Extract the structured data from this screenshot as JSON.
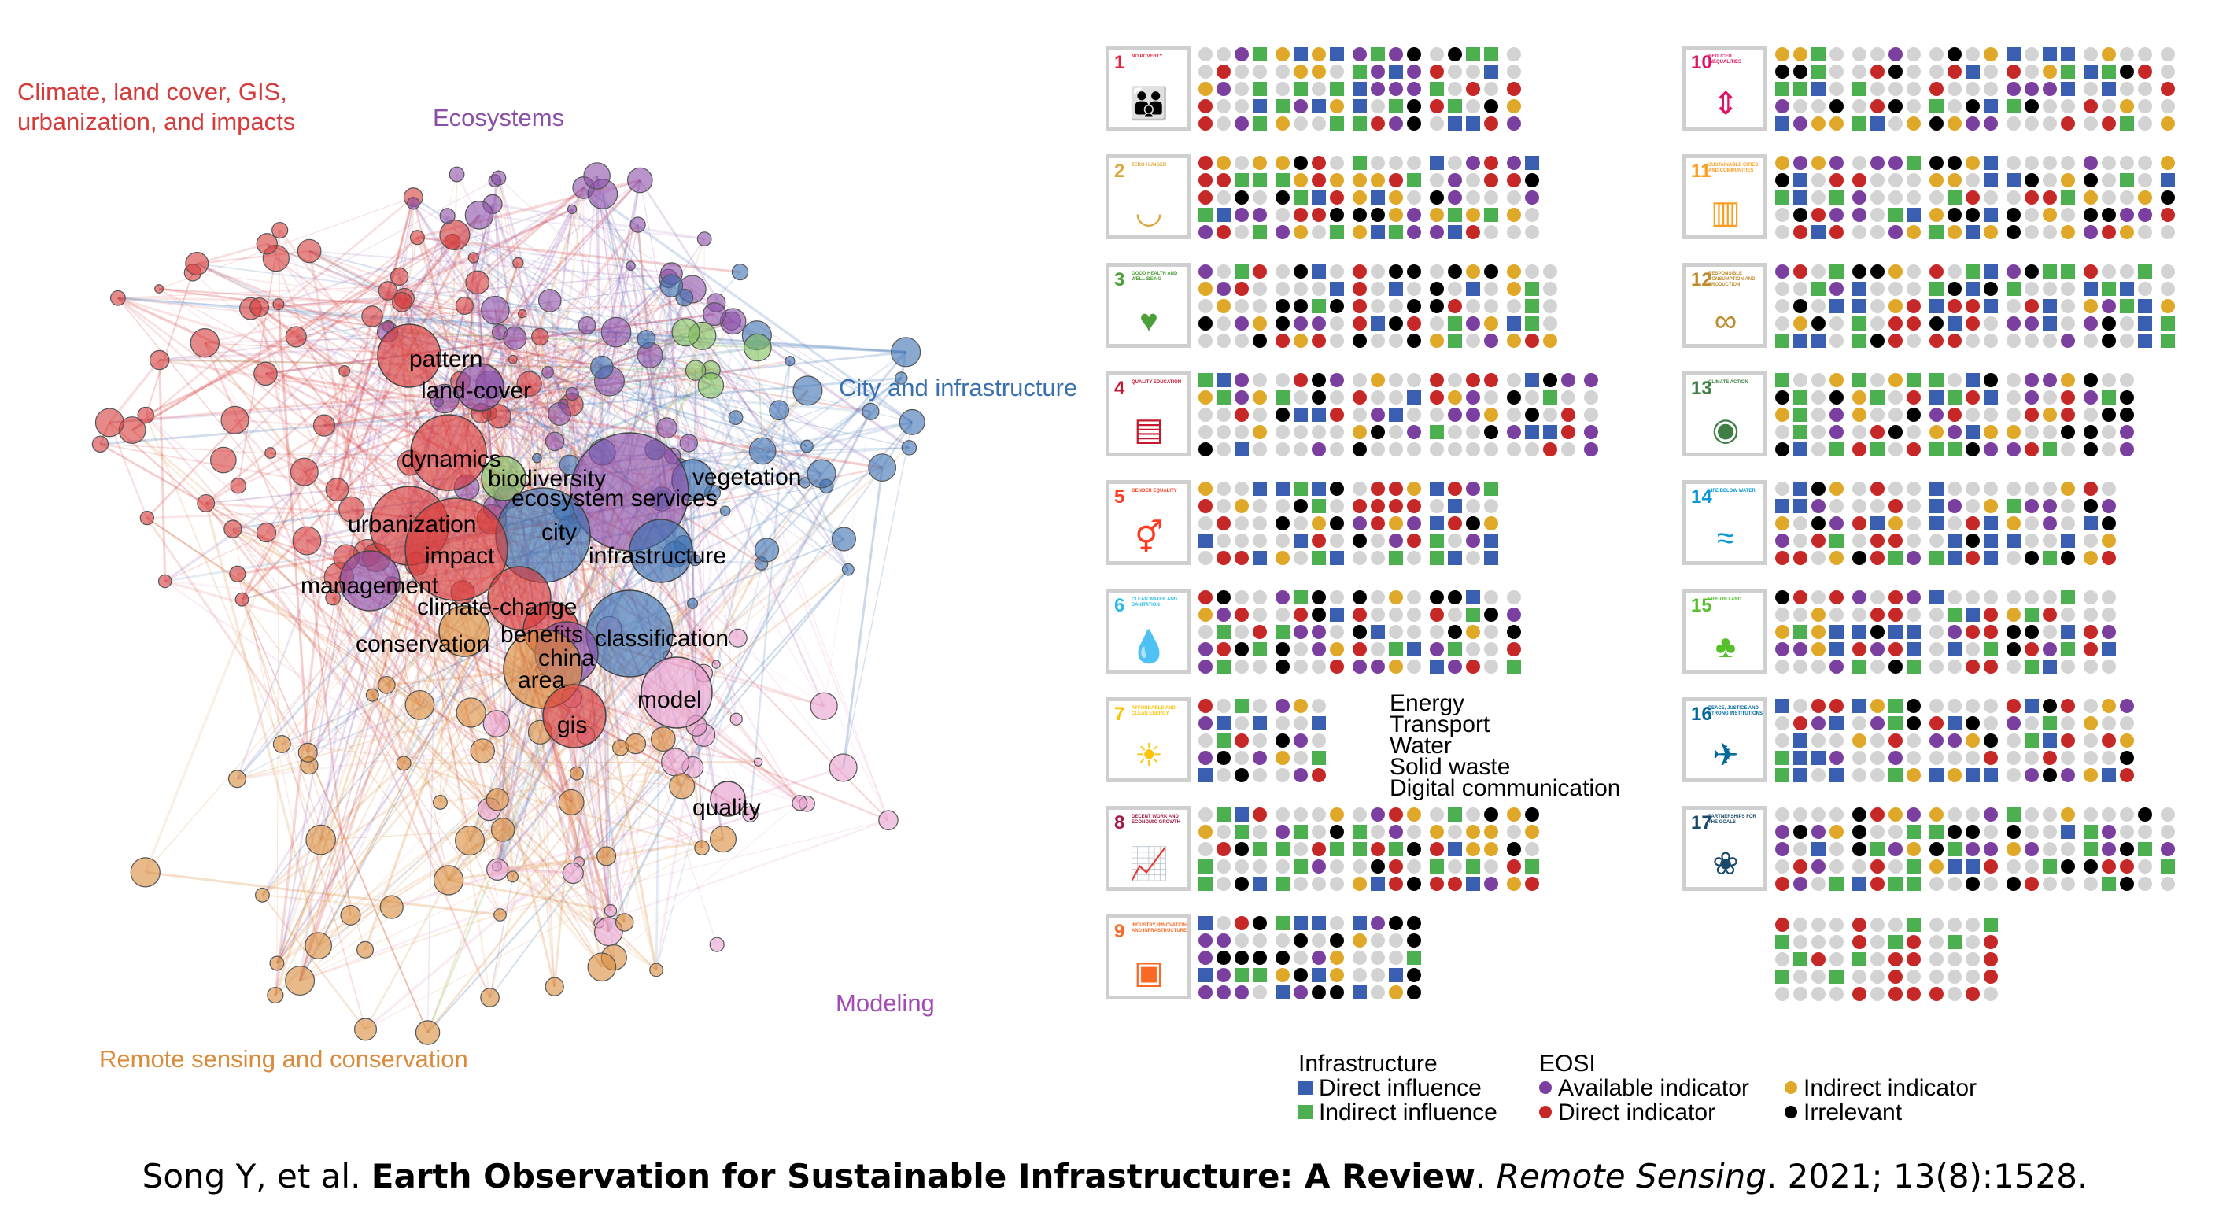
{
  "network": {
    "group_labels": {
      "climate": "Climate, land cover, GIS,\nurbanization, and impacts",
      "ecosystems": "Ecosystems",
      "city": "City and infrastructure",
      "modeling": "Modeling",
      "remote": "Remote sensing and conservation"
    },
    "group_colors": {
      "climate": "#d63a3a",
      "ecosystems": "#8b4fa8",
      "city": "#3a70b0",
      "modeling": "#a24bb5",
      "remote": "#d98a3a"
    },
    "keywords": [
      "pattern",
      "land-cover",
      "dynamics",
      "biodiversity",
      "vegetation",
      "ecosystem services",
      "urbanization",
      "city",
      "impact",
      "infrastructure",
      "management",
      "climate-change",
      "benefits",
      "conservation",
      "classification",
      "china",
      "area",
      "model",
      "gis",
      "quality"
    ]
  },
  "sdgs": [
    {
      "num": "1",
      "name": "No poverty",
      "color": "#e5243b",
      "icon": "people-icon"
    },
    {
      "num": "2",
      "name": "Zero hunger",
      "color": "#dda63a",
      "icon": "bowl-icon"
    },
    {
      "num": "3",
      "name": "Good health and well-being",
      "color": "#4c9f38",
      "icon": "heartbeat-icon"
    },
    {
      "num": "4",
      "name": "Quality education",
      "color": "#c5192d",
      "icon": "book-icon"
    },
    {
      "num": "5",
      "name": "Gender equality",
      "color": "#ff3a21",
      "icon": "gender-icon"
    },
    {
      "num": "6",
      "name": "Clean water and sanitation",
      "color": "#26bde2",
      "icon": "water-drop-icon"
    },
    {
      "num": "7",
      "name": "Affordable and clean energy",
      "color": "#fcc30b",
      "icon": "sun-power-icon"
    },
    {
      "num": "8",
      "name": "Decent work and economic growth",
      "color": "#a21942",
      "icon": "growth-chart-icon"
    },
    {
      "num": "9",
      "name": "Industry, innovation and infrastructure",
      "color": "#fd6925",
      "icon": "cubes-icon"
    },
    {
      "num": "10",
      "name": "Reduced inequalities",
      "color": "#dd1367",
      "icon": "inequality-arrows-icon"
    },
    {
      "num": "11",
      "name": "Sustainable cities and communities",
      "color": "#fd9d24",
      "icon": "city-buildings-icon"
    },
    {
      "num": "12",
      "name": "Responsible consumption and production",
      "color": "#bf8b2e",
      "icon": "infinity-icon"
    },
    {
      "num": "13",
      "name": "Climate action",
      "color": "#3f7e44",
      "icon": "eye-globe-icon"
    },
    {
      "num": "14",
      "name": "Life below water",
      "color": "#0a97d9",
      "icon": "fish-icon"
    },
    {
      "num": "15",
      "name": "Life on land",
      "color": "#56c02b",
      "icon": "tree-icon"
    },
    {
      "num": "16",
      "name": "Peace, justice and strong institutions",
      "color": "#00689d",
      "icon": "dove-icon"
    },
    {
      "num": "17",
      "name": "Partnerships for the goals",
      "color": "#19486a",
      "icon": "rings-icon"
    }
  ],
  "energy_list": [
    "Energy",
    "Transport",
    "Water",
    "Solid waste",
    "Digital communication"
  ],
  "legend": {
    "infra_title": "Infrastructure",
    "direct_influence": "Direct influence",
    "indirect_influence": "Indirect influence",
    "eosi_title": "EOSI",
    "available_indicator": "Available indicator",
    "direct_indicator": "Direct indicator",
    "indirect_indicator": "Indirect indicator",
    "irrelevant": "Irrelevant",
    "colors": {
      "direct_influence": "#3a5fb0",
      "indirect_influence": "#4caf50",
      "available_indicator": "#7b3fa0",
      "direct_indicator": "#c62828",
      "indirect_indicator": "#e0a829",
      "irrelevant": "#000000",
      "empty": "#d3d3d3"
    }
  },
  "citation": {
    "authors": "Song Y, et al.",
    "title": "Earth Observation for Sustainable Infrastructure: A Review",
    "journal": "Remote Sensing",
    "rest": ". 2021; 13(8):1528."
  }
}
